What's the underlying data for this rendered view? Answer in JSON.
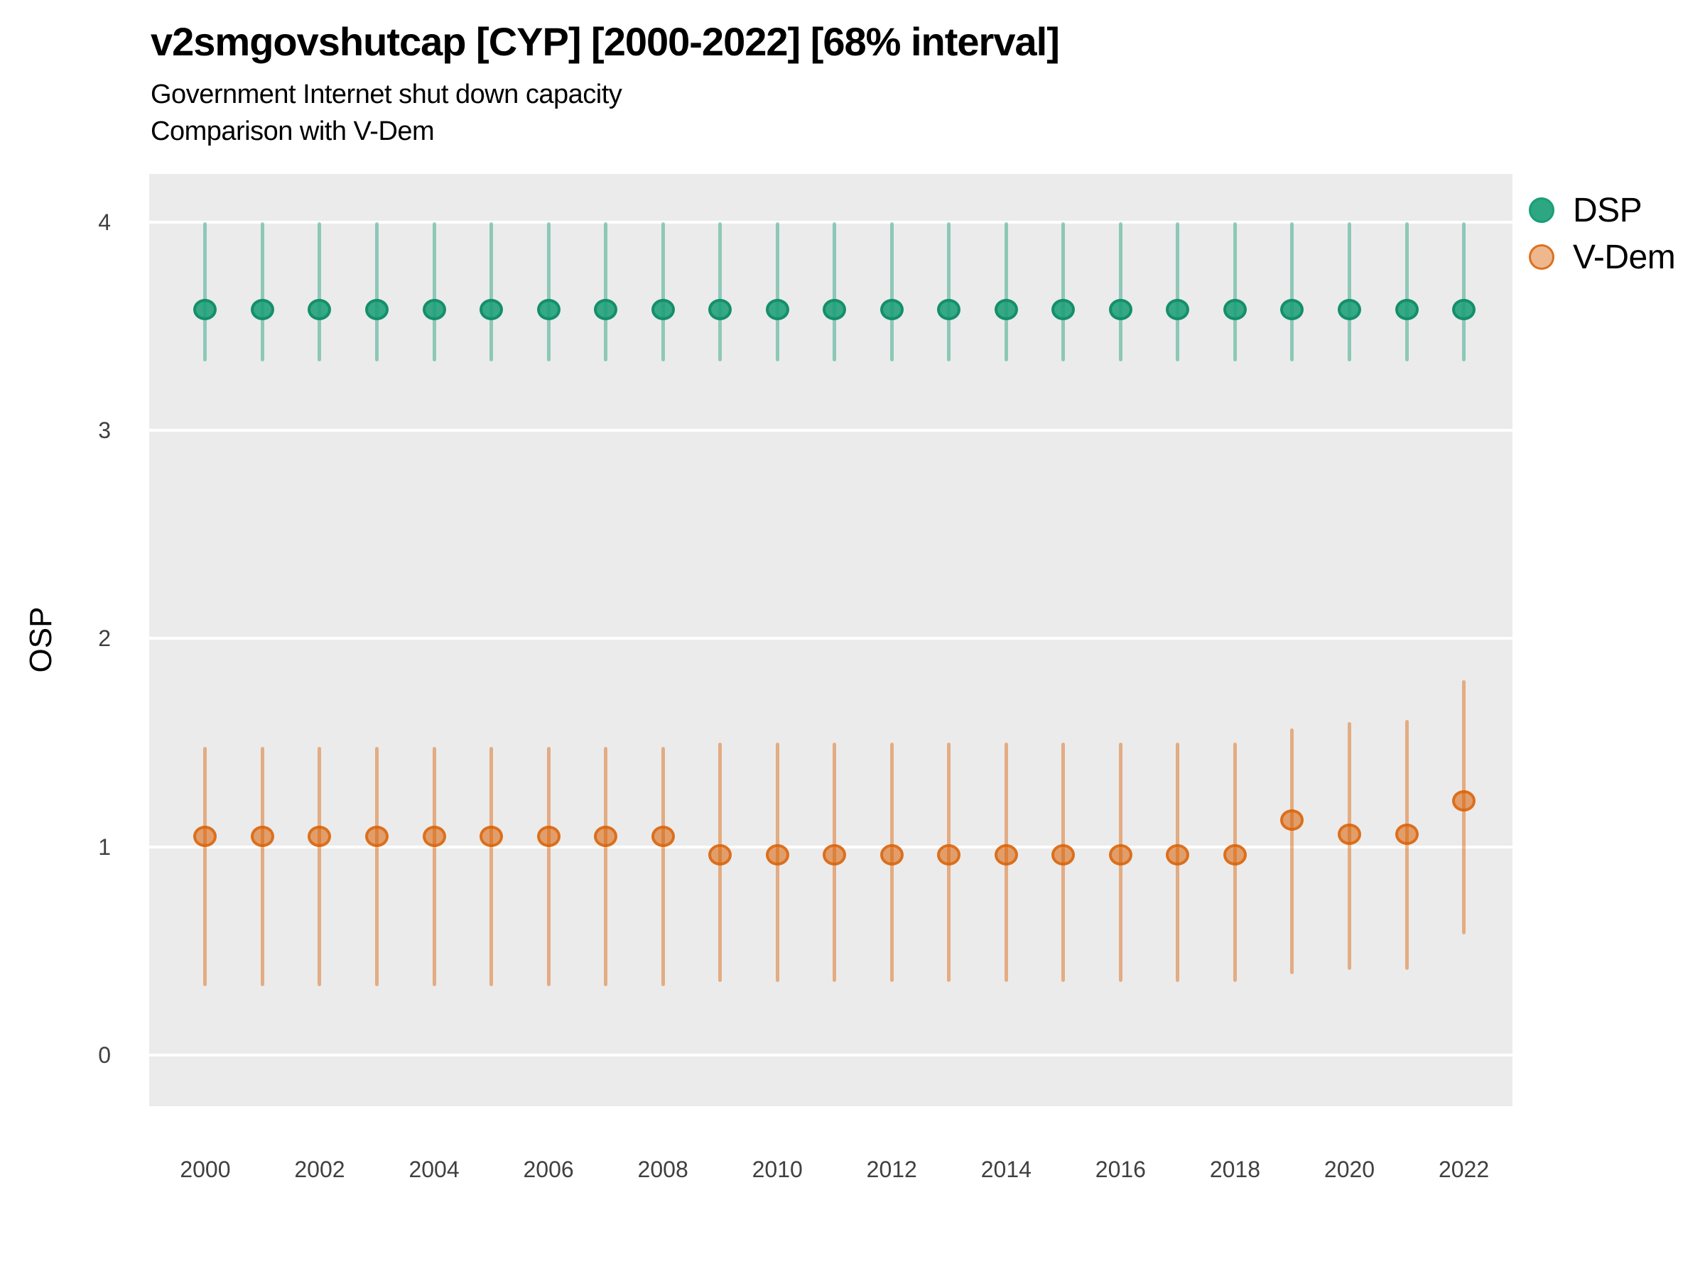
{
  "figure": {
    "title": "v2smgovshutcap [CYP] [2000-2022] [68% interval]",
    "subtitle_line1": "Government Internet shut down capacity",
    "subtitle_line2": "Comparison with V-Dem"
  },
  "axes": {
    "y_label": "OSP",
    "y_ticks": [
      0,
      1,
      2,
      3,
      4
    ],
    "x_ticks": [
      2000,
      2002,
      2004,
      2006,
      2008,
      2010,
      2012,
      2014,
      2016,
      2018,
      2020,
      2022
    ]
  },
  "legend": {
    "entries": [
      {
        "label": "DSP",
        "swatch_fill": "rgba(27,158,119,0.92)",
        "swatch_border": "#1b9e77"
      },
      {
        "label": "V-Dem",
        "swatch_fill": "rgba(217,95,2,0.45)",
        "swatch_border": "rgba(217,95,2,0.8)"
      }
    ]
  },
  "colors": {
    "background": "#ffffff",
    "panel_background": "#ebebeb",
    "gridline": "#ffffff",
    "tick_text": "#404040",
    "dsp_base": "#1b9e77",
    "vdem_base": "#d95f02"
  },
  "chart_data": {
    "type": "pointrange",
    "title": "v2smgovshutcap [CYP] [2000-2022] [68% interval]",
    "subtitle": [
      "Government Internet shut down capacity",
      "Comparison with V-Dem"
    ],
    "xlabel": "",
    "ylabel": "OSP",
    "ylim": [
      -0.246,
      4.232
    ],
    "xlim": [
      1999.02,
      2022.85
    ],
    "grid": true,
    "legend_position": "right",
    "interval_level": "68%",
    "series": [
      {
        "name": "DSP",
        "base_color": "#1b9e77",
        "line_rgba": "rgba(27,158,119,0.45)",
        "marker_fill": "rgba(27,158,119,0.88)",
        "marker_border": "rgba(20,143,106,1)",
        "points": [
          {
            "year": 2000,
            "est": 3.58,
            "lo": 3.33,
            "hi": 4.0
          },
          {
            "year": 2001,
            "est": 3.58,
            "lo": 3.33,
            "hi": 4.0
          },
          {
            "year": 2002,
            "est": 3.58,
            "lo": 3.33,
            "hi": 4.0
          },
          {
            "year": 2003,
            "est": 3.58,
            "lo": 3.33,
            "hi": 4.0
          },
          {
            "year": 2004,
            "est": 3.58,
            "lo": 3.33,
            "hi": 4.0
          },
          {
            "year": 2005,
            "est": 3.58,
            "lo": 3.33,
            "hi": 4.0
          },
          {
            "year": 2006,
            "est": 3.58,
            "lo": 3.33,
            "hi": 4.0
          },
          {
            "year": 2007,
            "est": 3.58,
            "lo": 3.33,
            "hi": 4.0
          },
          {
            "year": 2008,
            "est": 3.58,
            "lo": 3.33,
            "hi": 4.0
          },
          {
            "year": 2009,
            "est": 3.58,
            "lo": 3.33,
            "hi": 4.0
          },
          {
            "year": 2010,
            "est": 3.58,
            "lo": 3.33,
            "hi": 4.0
          },
          {
            "year": 2011,
            "est": 3.58,
            "lo": 3.33,
            "hi": 4.0
          },
          {
            "year": 2012,
            "est": 3.58,
            "lo": 3.33,
            "hi": 4.0
          },
          {
            "year": 2013,
            "est": 3.58,
            "lo": 3.33,
            "hi": 4.0
          },
          {
            "year": 2014,
            "est": 3.58,
            "lo": 3.33,
            "hi": 4.0
          },
          {
            "year": 2015,
            "est": 3.58,
            "lo": 3.33,
            "hi": 4.0
          },
          {
            "year": 2016,
            "est": 3.58,
            "lo": 3.33,
            "hi": 4.0
          },
          {
            "year": 2017,
            "est": 3.58,
            "lo": 3.33,
            "hi": 4.0
          },
          {
            "year": 2018,
            "est": 3.58,
            "lo": 3.33,
            "hi": 4.0
          },
          {
            "year": 2019,
            "est": 3.58,
            "lo": 3.33,
            "hi": 4.0
          },
          {
            "year": 2020,
            "est": 3.58,
            "lo": 3.33,
            "hi": 4.0
          },
          {
            "year": 2021,
            "est": 3.58,
            "lo": 3.33,
            "hi": 4.0
          },
          {
            "year": 2022,
            "est": 3.58,
            "lo": 3.33,
            "hi": 4.0
          }
        ]
      },
      {
        "name": "V-Dem",
        "base_color": "#d95f02",
        "line_rgba": "rgba(217,95,2,0.45)",
        "marker_fill": "rgba(217,95,2,0.55)",
        "marker_border": "rgba(217,95,2,0.75)",
        "points": [
          {
            "year": 2000,
            "est": 1.05,
            "lo": 0.33,
            "hi": 1.48
          },
          {
            "year": 2001,
            "est": 1.05,
            "lo": 0.33,
            "hi": 1.48
          },
          {
            "year": 2002,
            "est": 1.05,
            "lo": 0.33,
            "hi": 1.48
          },
          {
            "year": 2003,
            "est": 1.05,
            "lo": 0.33,
            "hi": 1.48
          },
          {
            "year": 2004,
            "est": 1.05,
            "lo": 0.33,
            "hi": 1.48
          },
          {
            "year": 2005,
            "est": 1.05,
            "lo": 0.33,
            "hi": 1.48
          },
          {
            "year": 2006,
            "est": 1.05,
            "lo": 0.33,
            "hi": 1.48
          },
          {
            "year": 2007,
            "est": 1.05,
            "lo": 0.33,
            "hi": 1.48
          },
          {
            "year": 2008,
            "est": 1.05,
            "lo": 0.33,
            "hi": 1.48
          },
          {
            "year": 2009,
            "est": 0.96,
            "lo": 0.35,
            "hi": 1.5
          },
          {
            "year": 2010,
            "est": 0.96,
            "lo": 0.35,
            "hi": 1.5
          },
          {
            "year": 2011,
            "est": 0.96,
            "lo": 0.35,
            "hi": 1.5
          },
          {
            "year": 2012,
            "est": 0.96,
            "lo": 0.35,
            "hi": 1.5
          },
          {
            "year": 2013,
            "est": 0.96,
            "lo": 0.35,
            "hi": 1.5
          },
          {
            "year": 2014,
            "est": 0.96,
            "lo": 0.35,
            "hi": 1.5
          },
          {
            "year": 2015,
            "est": 0.96,
            "lo": 0.35,
            "hi": 1.5
          },
          {
            "year": 2016,
            "est": 0.96,
            "lo": 0.35,
            "hi": 1.5
          },
          {
            "year": 2017,
            "est": 0.96,
            "lo": 0.35,
            "hi": 1.5
          },
          {
            "year": 2018,
            "est": 0.96,
            "lo": 0.35,
            "hi": 1.5
          },
          {
            "year": 2019,
            "est": 1.13,
            "lo": 0.39,
            "hi": 1.57
          },
          {
            "year": 2020,
            "est": 1.06,
            "lo": 0.41,
            "hi": 1.6
          },
          {
            "year": 2021,
            "est": 1.06,
            "lo": 0.41,
            "hi": 1.61
          },
          {
            "year": 2022,
            "est": 1.22,
            "lo": 0.58,
            "hi": 1.8
          }
        ]
      }
    ]
  }
}
